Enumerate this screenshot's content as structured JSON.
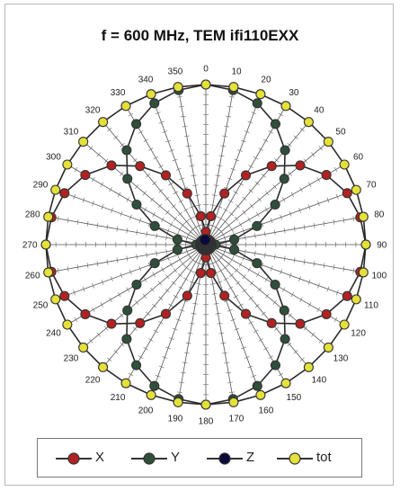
{
  "chart_data": {
    "type": "polar-scatter-line",
    "title": "f = 600 MHz, TEM ifi110EXX",
    "angle_ticks": [
      "0",
      "10",
      "20",
      "30",
      "40",
      "50",
      "60",
      "70",
      "80",
      "90",
      "100",
      "110",
      "120",
      "130",
      "140",
      "150",
      "160",
      "170",
      "180",
      "190",
      "200",
      "210",
      "220",
      "230",
      "240",
      "250",
      "260",
      "270",
      "280",
      "290",
      "300",
      "310",
      "320",
      "330",
      "340",
      "350"
    ],
    "angles_deg": [
      0,
      10,
      20,
      30,
      40,
      50,
      60,
      70,
      80,
      90,
      100,
      110,
      120,
      130,
      140,
      150,
      160,
      170,
      180,
      190,
      200,
      210,
      220,
      230,
      240,
      250,
      260,
      270,
      280,
      290,
      300,
      310,
      320,
      330,
      340,
      350
    ],
    "rlim": [
      0,
      1
    ],
    "radial_grid_steps": 16,
    "series": [
      {
        "name": "X",
        "color": "#b22222",
        "values": [
          0.08,
          0.18,
          0.34,
          0.5,
          0.64,
          0.77,
          0.87,
          0.94,
          0.98,
          1.0,
          0.98,
          0.94,
          0.87,
          0.77,
          0.64,
          0.5,
          0.34,
          0.18,
          0.08,
          0.18,
          0.34,
          0.5,
          0.64,
          0.77,
          0.87,
          0.94,
          0.98,
          1.0,
          0.98,
          0.94,
          0.87,
          0.77,
          0.64,
          0.5,
          0.34,
          0.18
        ]
      },
      {
        "name": "Y",
        "color": "#2f4f3a",
        "values": [
          1.0,
          0.98,
          0.94,
          0.87,
          0.77,
          0.64,
          0.5,
          0.34,
          0.18,
          0.06,
          0.18,
          0.34,
          0.5,
          0.64,
          0.77,
          0.87,
          0.94,
          0.98,
          1.0,
          0.98,
          0.94,
          0.87,
          0.77,
          0.64,
          0.5,
          0.34,
          0.18,
          0.06,
          0.18,
          0.34,
          0.5,
          0.64,
          0.77,
          0.87,
          0.94,
          0.98
        ]
      },
      {
        "name": "Z",
        "color": "#0a0a3a",
        "values": [
          0.03,
          0.03,
          0.03,
          0.03,
          0.03,
          0.03,
          0.03,
          0.03,
          0.03,
          0.03,
          0.03,
          0.03,
          0.03,
          0.03,
          0.03,
          0.03,
          0.03,
          0.03,
          0.03,
          0.03,
          0.03,
          0.03,
          0.03,
          0.03,
          0.03,
          0.03,
          0.03,
          0.03,
          0.03,
          0.03,
          0.03,
          0.03,
          0.03,
          0.03,
          0.03,
          0.03
        ]
      },
      {
        "name": "tot",
        "color": "#e4e13a",
        "values": [
          1.0,
          1.0,
          1.0,
          1.0,
          1.0,
          1.0,
          1.0,
          1.0,
          1.0,
          1.0,
          1.0,
          1.0,
          1.0,
          1.0,
          1.0,
          1.0,
          1.0,
          1.0,
          1.0,
          1.0,
          1.0,
          1.0,
          1.0,
          1.0,
          1.0,
          1.0,
          1.0,
          1.0,
          1.0,
          1.0,
          1.0,
          1.0,
          1.0,
          1.0,
          1.0,
          1.0
        ]
      }
    ],
    "legend": {
      "position": "bottom",
      "entries": [
        "X",
        "Y",
        "Z",
        "tot"
      ]
    }
  }
}
